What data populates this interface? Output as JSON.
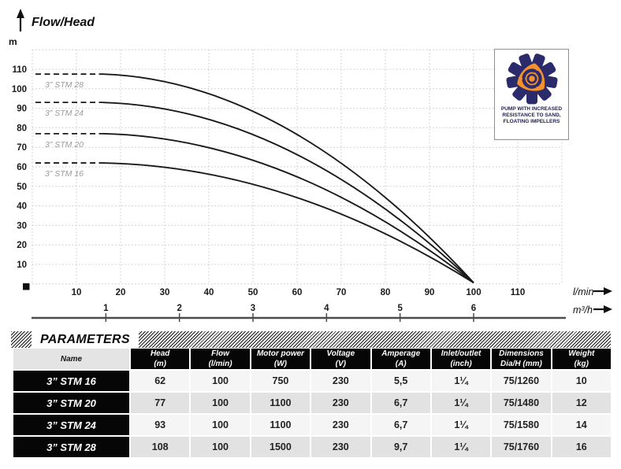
{
  "chart": {
    "title": "Flow/Head",
    "y_unit_label": "m",
    "x_axis_primary_label": "l/min",
    "x_axis_secondary_label": "m³/h"
  },
  "chart_data": {
    "type": "line",
    "title": "Flow/Head",
    "ylabel": "m",
    "xlabel_primary": "l/min",
    "xlabel_secondary": "m³/h",
    "xlim_lmin": [
      0,
      120
    ],
    "ylim_m": [
      0,
      120
    ],
    "grid": true,
    "x_ticks_lmin": [
      10,
      20,
      30,
      40,
      50,
      60,
      70,
      80,
      90,
      100,
      110
    ],
    "x_ticks_m3h": [
      1,
      2,
      3,
      4,
      5,
      6
    ],
    "y_ticks_m": [
      10,
      20,
      30,
      40,
      50,
      60,
      70,
      80,
      90,
      100,
      110
    ],
    "series": [
      {
        "name": "3” STM 28",
        "shutoff_head_m": 107.5,
        "max_flow_lmin": 100,
        "points_lmin_head": [
          [
            0,
            108
          ],
          [
            20,
            107
          ],
          [
            40,
            98
          ],
          [
            60,
            78
          ],
          [
            80,
            43
          ],
          [
            100,
            0
          ]
        ]
      },
      {
        "name": "3” STM 24",
        "shutoff_head_m": 93,
        "max_flow_lmin": 100,
        "points_lmin_head": [
          [
            0,
            93
          ],
          [
            20,
            92
          ],
          [
            40,
            85
          ],
          [
            60,
            67
          ],
          [
            80,
            37
          ],
          [
            100,
            0
          ]
        ]
      },
      {
        "name": "3” STM 20",
        "shutoff_head_m": 77,
        "max_flow_lmin": 100,
        "points_lmin_head": [
          [
            0,
            77
          ],
          [
            20,
            76
          ],
          [
            40,
            70
          ],
          [
            60,
            55
          ],
          [
            80,
            31
          ],
          [
            100,
            0
          ]
        ]
      },
      {
        "name": "3” STM 16",
        "shutoff_head_m": 62,
        "max_flow_lmin": 100,
        "points_lmin_head": [
          [
            0,
            62
          ],
          [
            20,
            61
          ],
          [
            40,
            56
          ],
          [
            60,
            45
          ],
          [
            80,
            25
          ],
          [
            100,
            0
          ]
        ]
      }
    ],
    "curve_color": "#1a1a1a",
    "label_color": "#9b9b9b"
  },
  "badge": {
    "lines": [
      "PUMP WITH INCREASED",
      "RESISTANCE TO SAND,",
      "FLOATING IMPELLERS"
    ],
    "navy": "#2b2a6b",
    "orange": "#f3912d"
  },
  "parameters": {
    "section_title": "PARAMETERS",
    "columns": [
      {
        "label": "Name",
        "unit": ""
      },
      {
        "label": "Head",
        "unit": "(m)"
      },
      {
        "label": "Flow",
        "unit": "(l/min)"
      },
      {
        "label": "Motor power",
        "unit": "(W)"
      },
      {
        "label": "Voltage",
        "unit": "(V)"
      },
      {
        "label": "Amperage",
        "unit": "(A)"
      },
      {
        "label": "Inlet/outlet",
        "unit": "(inch)"
      },
      {
        "label": "Dimensions",
        "unit": "Dia/H (mm)"
      },
      {
        "label": "Weight",
        "unit": "(kg)"
      }
    ],
    "rows": [
      {
        "name": "3” STM 16",
        "values": [
          "62",
          "100",
          "750",
          "230",
          "5,5",
          "1¼",
          "75/1260",
          "10"
        ]
      },
      {
        "name": "3” STM 20",
        "values": [
          "77",
          "100",
          "1100",
          "230",
          "6,7",
          "1¼",
          "75/1480",
          "12"
        ]
      },
      {
        "name": "3” STM 24",
        "values": [
          "93",
          "100",
          "1100",
          "230",
          "6,7",
          "1¼",
          "75/1580",
          "14"
        ]
      },
      {
        "name": "3” STM 28",
        "values": [
          "108",
          "100",
          "1500",
          "230",
          "9,7",
          "1¼",
          "75/1760",
          "16"
        ]
      }
    ]
  }
}
